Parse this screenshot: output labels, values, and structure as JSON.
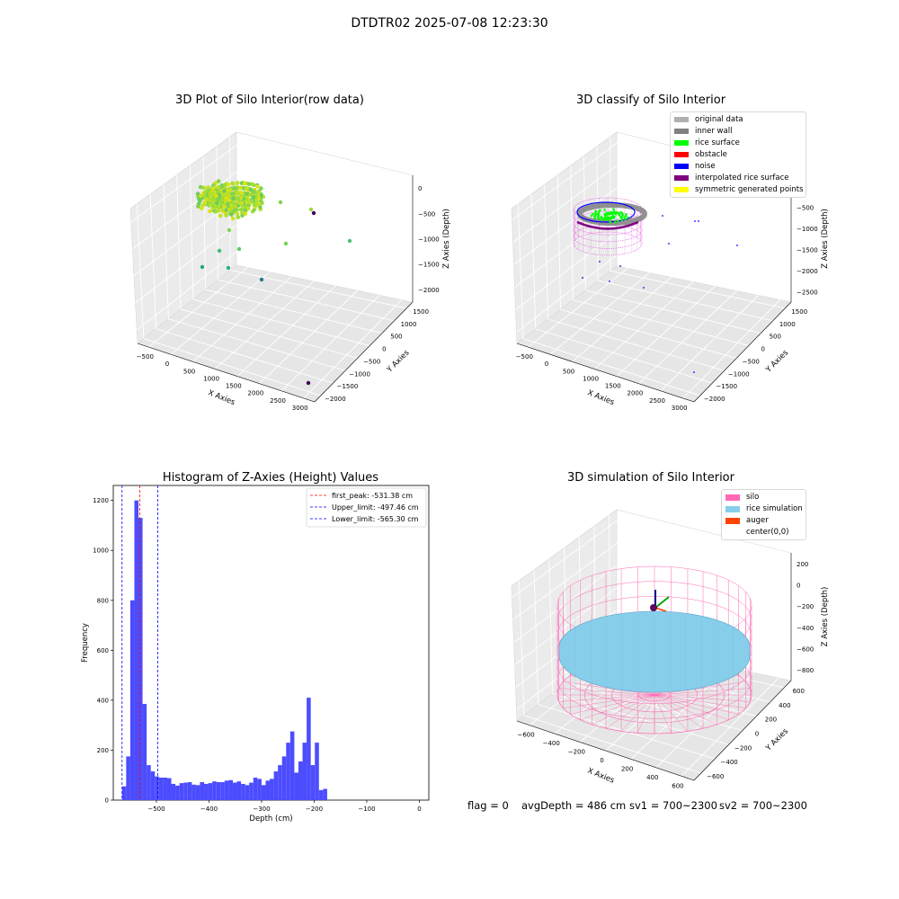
{
  "suptitle": "DTDTR02 2025-07-08 12:23:30",
  "footer": {
    "flag": "flag = 0",
    "avg_depth": "avgDepth = 486 cm",
    "sv1": "sv1 = 700~2300",
    "sv2": "sv2 = 700~2300"
  },
  "colors": {
    "hist_bar": "#4c4cff",
    "first_peak_line": "#ff0000",
    "limit_lines": "#0000ff",
    "silo": "#ff69b4",
    "rice_simulation": "#87ceeb",
    "auger": "#ff4500",
    "rice_surface": "#00ff00",
    "noise": "#0000ff",
    "inner_wall": "#808080",
    "interpolated": "#800080"
  },
  "panels": {
    "raw": {
      "title": "3D Plot of Silo Interior(row data)",
      "x_label": "X Axies",
      "y_label": "Y Axies",
      "z_label": "Z Axies (Depth)",
      "x_ticks": [
        "−500",
        "0",
        "500",
        "1000",
        "1500",
        "2000",
        "2500",
        "3000"
      ],
      "y_ticks": [
        "−2000",
        "−1500",
        "−1000",
        "−500",
        "0",
        "500",
        "1000",
        "1500"
      ],
      "z_ticks": [
        "0",
        "−500",
        "−1000",
        "−1500",
        "−2000"
      ]
    },
    "classify": {
      "title": "3D classify of Silo Interior",
      "x_label": "X Axies",
      "y_label": "Y Axies",
      "z_label": "Z Axies (Depth)",
      "x_ticks": [
        "−500",
        "0",
        "500",
        "1000",
        "1500",
        "2000",
        "2500",
        "3000"
      ],
      "y_ticks": [
        "−2000",
        "−1500",
        "−1000",
        "−500",
        "0",
        "500",
        "1000",
        "1500"
      ],
      "z_ticks": [
        "0",
        "−500",
        "−1000",
        "−1500",
        "−2000",
        "−2500"
      ],
      "legend": [
        {
          "label": "original data",
          "color": "#b0b0b0"
        },
        {
          "label": "inner wall",
          "color": "#808080"
        },
        {
          "label": "rice surface",
          "color": "#00ff00"
        },
        {
          "label": "obstacle",
          "color": "#ff0000"
        },
        {
          "label": "noise",
          "color": "#0000ff"
        },
        {
          "label": "interpolated rice surface",
          "color": "#800080"
        },
        {
          "label": "symmetric generated points",
          "color": "#ffff00"
        }
      ]
    },
    "sim": {
      "title": "3D simulation of Silo Interior",
      "x_label": "X Axies",
      "y_label": "Y Axies",
      "z_label": "Z Axies (Depth)",
      "x_ticks": [
        "−600",
        "−400",
        "−200",
        "0",
        "200",
        "400",
        "600"
      ],
      "y_ticks": [
        "−600",
        "−400",
        "−200",
        "0",
        "200",
        "400",
        "600"
      ],
      "z_ticks": [
        "200",
        "0",
        "−200",
        "−400",
        "−600",
        "−800"
      ],
      "legend": [
        {
          "label": "silo",
          "color": "#ff69b4"
        },
        {
          "label": "rice simulation",
          "color": "#87ceeb"
        },
        {
          "label": "auger",
          "color": "#ff4500"
        },
        {
          "label": "center(0,0)",
          "color": ""
        }
      ]
    }
  },
  "chart_data": {
    "type": "bar",
    "title": "Histogram of Z-Axies (Height) Values",
    "xlabel": "Depth (cm)",
    "ylabel": "Frequency",
    "xlim": [
      -582,
      18
    ],
    "ylim": [
      0,
      1260
    ],
    "x_ticks": [
      -500,
      -400,
      -300,
      -200,
      -100,
      0
    ],
    "x_tick_labels": [
      "−500",
      "−400",
      "−300",
      "−200",
      "−100",
      "0"
    ],
    "y_ticks": [
      0,
      200,
      400,
      600,
      800,
      1000,
      1200
    ],
    "bin_start": -565.3,
    "bin_width": 7.8,
    "values": [
      55,
      175,
      800,
      1200,
      1130,
      385,
      140,
      115,
      95,
      90,
      90,
      88,
      65,
      58,
      68,
      70,
      72,
      62,
      60,
      72,
      65,
      68,
      75,
      72,
      72,
      78,
      80,
      70,
      75,
      65,
      60,
      70,
      90,
      85,
      60,
      78,
      85,
      115,
      140,
      175,
      230,
      275,
      110,
      155,
      230,
      410,
      140,
      230,
      40,
      45
    ],
    "vlines": [
      {
        "label": "first_peak: -531.38 cm",
        "x": -531.38,
        "style": "dashed",
        "color": "#ff0000"
      },
      {
        "label": "Upper_limit: -497.46 cm",
        "x": -497.46,
        "style": "dashed",
        "color": "#0000ff"
      },
      {
        "label": "Lower_limit: -565.30 cm",
        "x": -565.3,
        "style": "dashed",
        "color": "#0000ff"
      }
    ],
    "legend_position": "upper right"
  }
}
